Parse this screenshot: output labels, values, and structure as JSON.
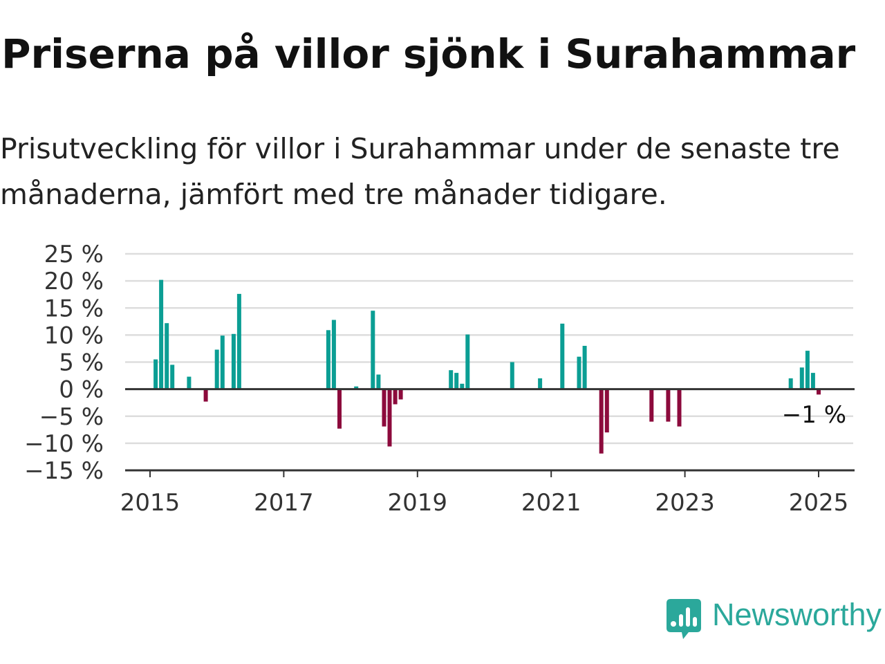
{
  "title": "Priserna på villor sjönk i Surahammar",
  "subtitle": "Prisutveckling för villor i Surahammar under de senaste tre månaderna, jämfört med tre månader tidigare.",
  "brand": {
    "name": "Newsworthy"
  },
  "colors": {
    "positive": "#0b9e94",
    "negative": "#8c0a3c",
    "grid": "#dddddd",
    "zero_line": "#333333",
    "brand": "#2ba89b"
  },
  "chart_data": {
    "type": "bar",
    "title": "Priserna på villor sjönk i Surahammar",
    "subtitle": "Prisutveckling för villor i Surahammar under de senaste tre månaderna, jämfört med tre månader tidigare.",
    "xlabel": "",
    "ylabel": "",
    "ylim": [
      -15,
      25
    ],
    "yticks": [
      25,
      20,
      15,
      10,
      5,
      0,
      -5,
      -10,
      -15
    ],
    "ytick_labels": [
      "25 %",
      "20 %",
      "15 %",
      "10 %",
      "5 %",
      "0 %",
      "−5 %",
      "−10 %",
      "−15 %"
    ],
    "xlim": [
      "2014-09",
      "2025-05"
    ],
    "xticks": [
      "2015",
      "2017",
      "2019",
      "2021",
      "2023",
      "2025"
    ],
    "grid": true,
    "last_value_label": "−1 %",
    "series": [
      {
        "x": [
          "2015-02",
          "2015-03",
          "2015-04",
          "2015-05",
          "2015-08",
          "2015-11",
          "2016-01",
          "2016-02",
          "2016-04",
          "2016-05",
          "2017-09",
          "2017-10",
          "2017-11",
          "2018-02",
          "2018-05",
          "2018-06",
          "2018-07",
          "2018-08",
          "2018-09",
          "2018-10",
          "2019-07",
          "2019-08",
          "2019-09",
          "2019-10",
          "2020-06",
          "2020-11",
          "2021-03",
          "2021-06",
          "2021-07",
          "2021-10",
          "2021-11",
          "2022-07",
          "2022-10",
          "2022-12",
          "2024-08",
          "2024-10",
          "2024-11",
          "2024-12",
          "2025-01"
        ],
        "values": [
          5.5,
          20.2,
          12.2,
          4.5,
          2.3,
          -2.3,
          7.3,
          9.9,
          10.2,
          17.6,
          10.9,
          12.8,
          -7.3,
          0.5,
          14.5,
          2.7,
          -6.9,
          -10.6,
          -2.8,
          -1.9,
          3.5,
          3.0,
          1.0,
          10.1,
          5.0,
          2.0,
          12.1,
          6.0,
          8.0,
          -11.9,
          -8.0,
          -6.0,
          -6.0,
          -6.9,
          2.0,
          4.0,
          7.1,
          3.0,
          -1.0
        ]
      }
    ]
  }
}
